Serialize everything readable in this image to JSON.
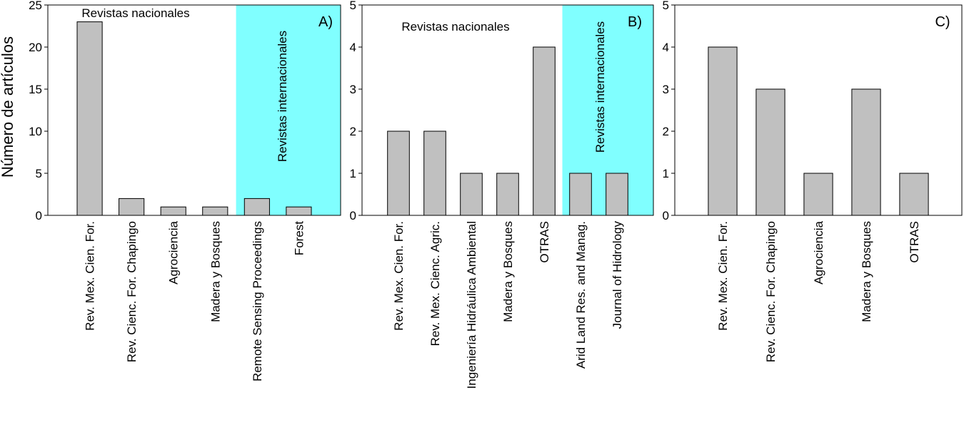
{
  "chart_data": [
    {
      "type": "bar",
      "panel_label": "A)",
      "ylabel": "Número de artículos",
      "categories": [
        "Rev. Mex. Cien. For.",
        "Rev. Cienc. For. Chapingo",
        "Agrociencia",
        "Madera y Bosques",
        "Remote Sensing Proceedings",
        "Forest"
      ],
      "values": [
        23,
        2,
        1,
        1,
        2,
        1
      ],
      "color": "#c0c0c0",
      "ylim": [
        0,
        25
      ],
      "yticks": [
        0,
        5,
        10,
        15,
        20,
        25
      ],
      "annotation_national": "Revistas nacionales",
      "annotation_international": "Revistas internacionales",
      "shade_color": "#80ffff",
      "shade_from_category": 4
    },
    {
      "type": "bar",
      "panel_label": "B)",
      "categories": [
        "Rev. Mex. Cien. For.",
        "Rev. Mex. Cienc. Agric.",
        "Ingeniería Hidráulica Ambiental",
        "Madera y Bosques",
        "OTRAS",
        "Arid Land Res. and Manag.",
        "Journal of Hidrology"
      ],
      "values": [
        2,
        2,
        1,
        1,
        4,
        1,
        1
      ],
      "color": "#c0c0c0",
      "ylim": [
        0,
        5
      ],
      "yticks": [
        0,
        1,
        2,
        3,
        4,
        5
      ],
      "annotation_national": "Revistas nacionales",
      "annotation_international": "Revistas internacionales",
      "shade_color": "#80ffff",
      "shade_from_category": 5
    },
    {
      "type": "bar",
      "panel_label": "C)",
      "categories": [
        "Rev. Mex. Cien. For.",
        "Rev. Cienc. For. Chapingo",
        "Agrociencia",
        "Madera y Bosques",
        "OTRAS"
      ],
      "values": [
        4,
        3,
        1,
        3,
        1
      ],
      "color": "#c0c0c0",
      "ylim": [
        0,
        5
      ],
      "yticks": [
        0,
        1,
        2,
        3,
        4,
        5
      ]
    }
  ]
}
